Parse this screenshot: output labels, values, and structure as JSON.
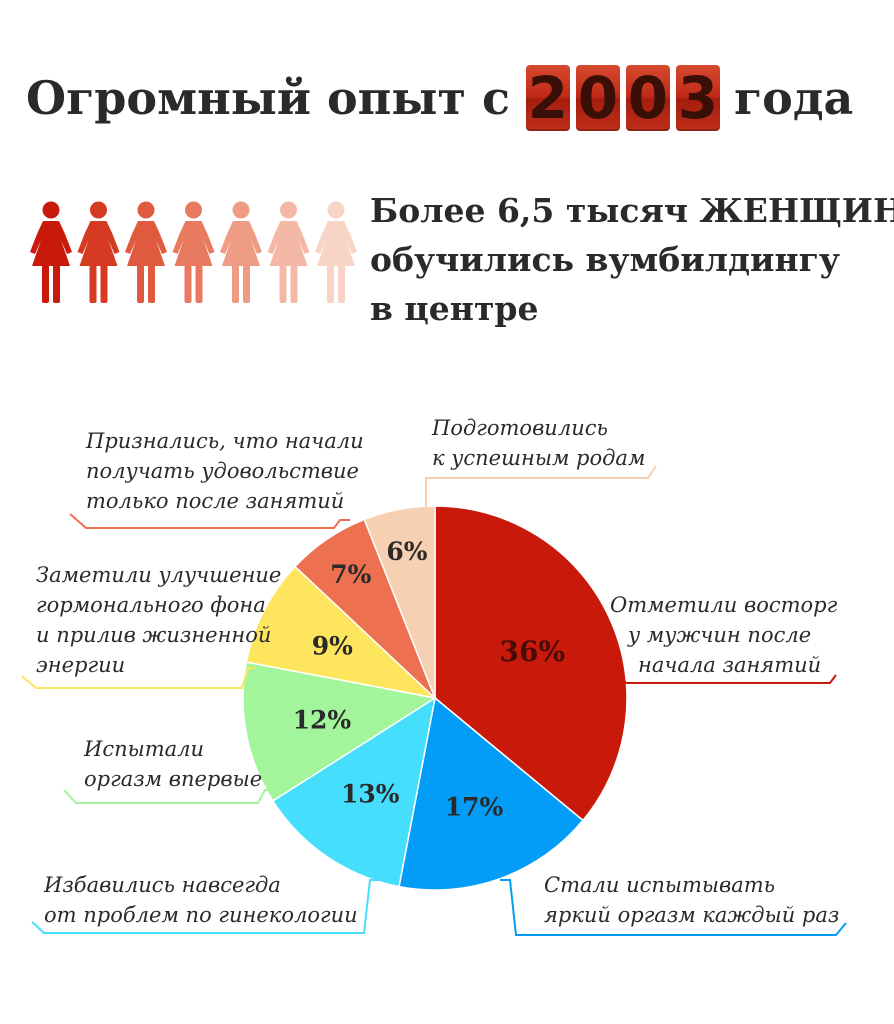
{
  "title": {
    "prefix": "Огромный опыт с",
    "year_digits": [
      "2",
      "0",
      "0",
      "3"
    ],
    "suffix": "года"
  },
  "headline": [
    "Более 6,5 тысяч ЖЕНЩИН",
    "обучились вумбилдингу",
    "в центре"
  ],
  "colors": {
    "accent": "#c8190b",
    "women_icons": [
      "#c8190b",
      "#d53a22",
      "#df5a3e",
      "#e87a60",
      "#ef9c85",
      "#f3b9a6",
      "#f7d4c5"
    ]
  },
  "chart_data": {
    "type": "pie",
    "slices": [
      {
        "value": 36,
        "label": "36%",
        "text": [
          "Отметили восторг",
          "у мужчин после",
          "начала занятий"
        ],
        "color": "#c8190b"
      },
      {
        "value": 17,
        "label": "17%",
        "text": [
          "Стали испытывать",
          "яркий оргазм каждый раз"
        ],
        "color": "#039cf6"
      },
      {
        "value": 13,
        "label": "13%",
        "text": [
          "Избавились навсегда",
          "от проблем по гинекологии"
        ],
        "color": "#45dffd"
      },
      {
        "value": 12,
        "label": "12%",
        "text": [
          "Испытали",
          "оргазм впервые"
        ],
        "color": "#a3f59c"
      },
      {
        "value": 9,
        "label": "9%",
        "text": [
          "Заметили улучшение",
          "гормонального фона",
          "и прилив жизненной",
          "энергии"
        ],
        "color": "#fde65d"
      },
      {
        "value": 7,
        "label": "7%",
        "text": [
          "Признались, что начали",
          "получать удовольствие",
          "только после занятий"
        ],
        "color": "#ed7150"
      },
      {
        "value": 6,
        "label": "6%",
        "text": [
          "Подготовились",
          "к успешным родам"
        ],
        "color": "#f7cfb2"
      }
    ]
  }
}
